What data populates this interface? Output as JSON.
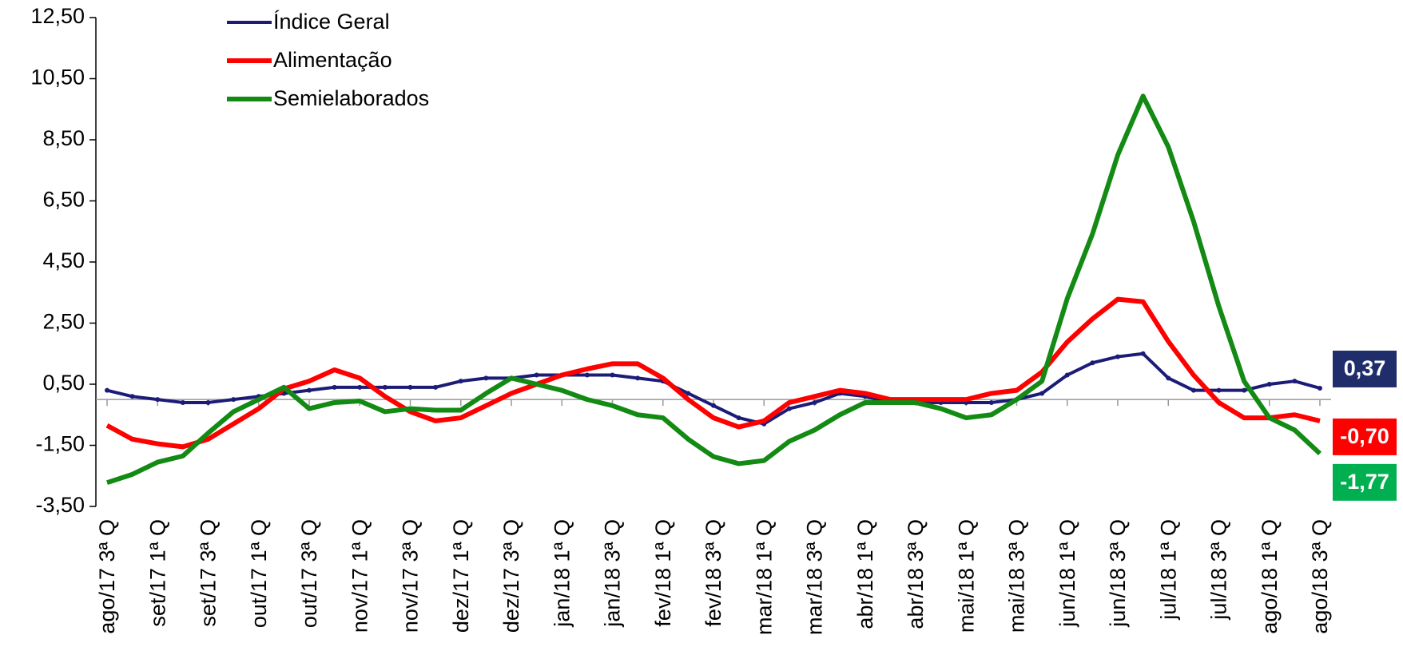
{
  "chart_data": {
    "type": "line",
    "categories": [
      "ago/17 3ª Q",
      null,
      "set/17 1ª Q",
      null,
      "set/17 3ª Q",
      null,
      "out/17 1ª Q",
      null,
      "out/17 3ª Q",
      null,
      "nov/17 1ª Q",
      null,
      "nov/17 3ª Q",
      null,
      "dez/17 1ª Q",
      null,
      "dez/17 3ª Q",
      null,
      "jan/18 1ª Q",
      null,
      "jan/18 3ª Q",
      null,
      "fev/18 1ª Q",
      null,
      "fev/18 3ª Q",
      null,
      "mar/18 1ª Q",
      null,
      "mar/18 3ª Q",
      null,
      "abr/18 1ª Q",
      null,
      "abr/18 3ª Q",
      null,
      "mai/18 1ª Q",
      null,
      "mai/18 3ª Q",
      null,
      "jun/18 1ª Q",
      null,
      "jun/18 3ª Q",
      null,
      "jul/18 1ª Q",
      null,
      "jul/18 3ª Q",
      null,
      "ago/18 1ª Q",
      null,
      "ago/18 3ª Q"
    ],
    "series": [
      {
        "name": "Índice Geral",
        "color": "#1c1c78",
        "values": [
          0.3,
          0.1,
          0.0,
          -0.1,
          -0.1,
          0.0,
          0.1,
          0.2,
          0.3,
          0.4,
          0.4,
          0.4,
          0.4,
          0.4,
          0.6,
          0.7,
          0.7,
          0.8,
          0.8,
          0.8,
          0.8,
          0.7,
          0.6,
          0.2,
          -0.2,
          -0.6,
          -0.8,
          -0.3,
          -0.1,
          0.2,
          0.1,
          -0.1,
          -0.1,
          -0.1,
          -0.1,
          -0.1,
          0.0,
          0.2,
          0.8,
          1.2,
          1.4,
          1.5,
          0.7,
          0.3,
          0.3,
          0.3,
          0.5,
          0.6,
          0.37
        ],
        "value_labels": [
          null,
          null,
          null,
          null,
          null,
          null,
          null,
          null,
          null,
          null,
          null,
          null,
          null,
          null,
          null,
          null,
          null,
          null,
          null,
          null,
          null,
          null,
          null,
          null,
          null,
          null,
          null,
          null,
          null,
          null,
          null,
          null,
          null,
          null,
          null,
          null,
          null,
          null,
          null,
          null,
          null,
          null,
          null,
          null,
          null,
          null,
          null,
          null,
          "0,37"
        ]
      },
      {
        "name": "Alimentação",
        "color": "#ff0000",
        "values": [
          -0.85,
          -1.3,
          -1.45,
          -1.55,
          -1.3,
          -0.8,
          -0.3,
          0.35,
          0.6,
          0.97,
          0.7,
          0.1,
          -0.4,
          -0.7,
          -0.6,
          -0.2,
          0.2,
          0.5,
          0.8,
          1.0,
          1.17,
          1.17,
          0.7,
          0.0,
          -0.6,
          -0.9,
          -0.7,
          -0.1,
          0.1,
          0.3,
          0.2,
          0.0,
          0.0,
          0.0,
          0.0,
          0.2,
          0.3,
          0.9,
          1.88,
          2.64,
          3.28,
          3.2,
          1.9,
          0.8,
          -0.1,
          -0.6,
          -0.6,
          -0.5,
          -0.7
        ],
        "value_labels": [
          null,
          null,
          null,
          null,
          null,
          null,
          null,
          null,
          null,
          null,
          null,
          null,
          null,
          null,
          null,
          null,
          null,
          null,
          null,
          null,
          null,
          null,
          null,
          null,
          null,
          null,
          null,
          null,
          null,
          null,
          null,
          null,
          null,
          null,
          null,
          null,
          null,
          null,
          null,
          null,
          null,
          null,
          null,
          null,
          null,
          null,
          null,
          null,
          "-0,70"
        ]
      },
      {
        "name": "Semielaborados",
        "color": "#138a13",
        "values": [
          -2.72,
          -2.45,
          -2.05,
          -1.85,
          -1.1,
          -0.4,
          0.0,
          0.4,
          -0.3,
          -0.1,
          -0.05,
          -0.4,
          -0.3,
          -0.35,
          -0.35,
          0.2,
          0.7,
          0.5,
          0.3,
          0.0,
          -0.2,
          -0.5,
          -0.6,
          -1.3,
          -1.87,
          -2.1,
          -2.0,
          -1.37,
          -1.0,
          -0.5,
          -0.1,
          -0.1,
          -0.1,
          -0.3,
          -0.6,
          -0.5,
          0.0,
          0.6,
          3.3,
          5.42,
          8.0,
          9.93,
          8.27,
          5.83,
          3.05,
          0.6,
          -0.6,
          -1.0,
          -1.77
        ],
        "value_labels": [
          null,
          null,
          null,
          null,
          null,
          null,
          null,
          null,
          null,
          null,
          null,
          null,
          null,
          null,
          null,
          null,
          null,
          null,
          null,
          null,
          null,
          null,
          null,
          null,
          null,
          null,
          null,
          null,
          null,
          null,
          null,
          null,
          null,
          null,
          null,
          null,
          null,
          null,
          null,
          null,
          null,
          null,
          null,
          null,
          null,
          null,
          null,
          null,
          "-1,77"
        ]
      }
    ],
    "ylim": [
      -3.5,
      12.5
    ],
    "yticks": [
      {
        "value": -3.5,
        "label": "-3,50"
      },
      {
        "value": -1.5,
        "label": "-1,50"
      },
      {
        "value": 0.5,
        "label": "0,50"
      },
      {
        "value": 2.5,
        "label": "2,50"
      },
      {
        "value": 4.5,
        "label": "4,50"
      },
      {
        "value": 6.5,
        "label": "6,50"
      },
      {
        "value": 8.5,
        "label": "8,50"
      },
      {
        "value": 10.5,
        "label": "10,50"
      },
      {
        "value": 12.5,
        "label": "12,50"
      }
    ],
    "label_box_colors": [
      "#1f2d6b",
      "#ff0000",
      "#00b050"
    ]
  }
}
